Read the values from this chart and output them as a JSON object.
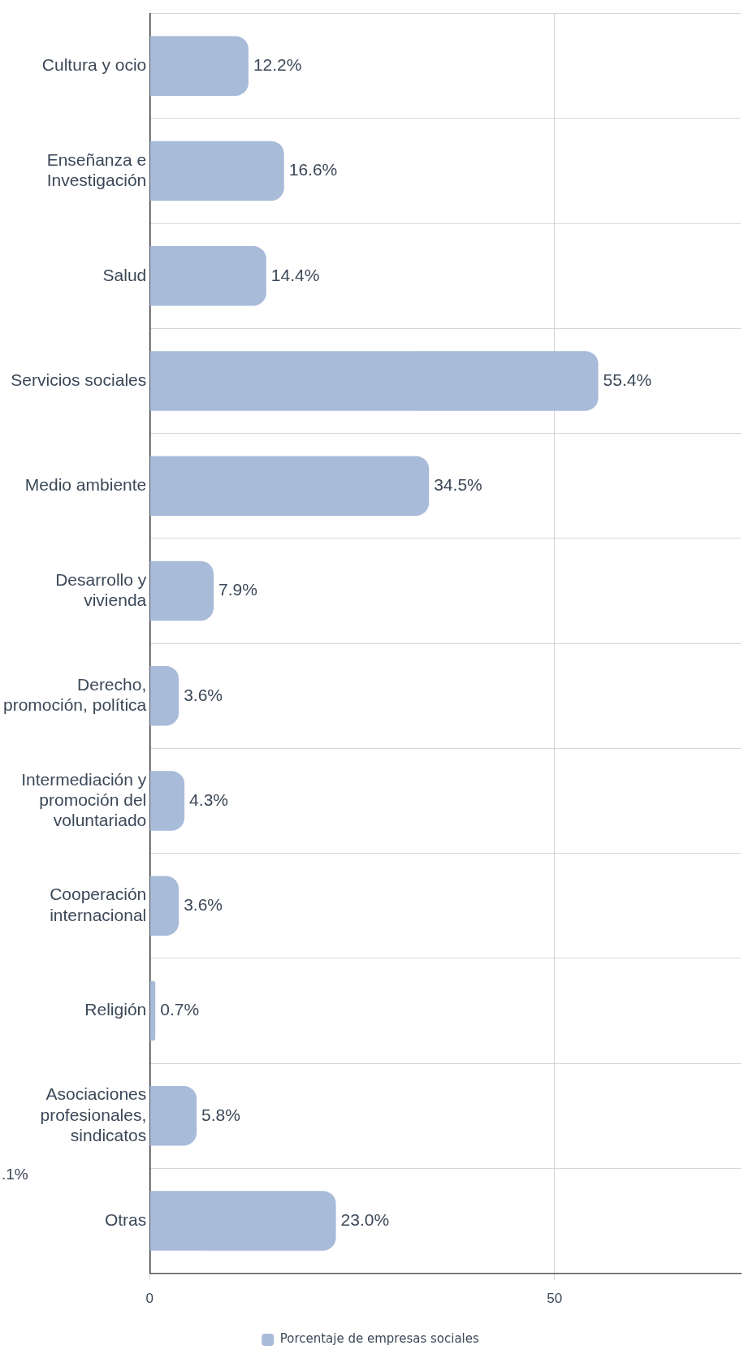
{
  "chart_data": {
    "type": "bar",
    "orientation": "horizontal",
    "categories": [
      "Cultura y ocio",
      "Enseñanza e Investigación",
      "Salud",
      "Servicios sociales",
      "Medio ambiente",
      "Desarrollo y vivienda",
      "Derecho, promoción, política",
      "Intermediación y promoción del voluntariado",
      "Cooperación internacional",
      "Religión",
      "Asociaciones profesionales, sindicatos",
      "Otras"
    ],
    "series": [
      {
        "name": "Porcentaje de empresas sociales",
        "color": "#a8bbd9",
        "values": [
          12.2,
          16.6,
          14.4,
          55.4,
          34.5,
          7.9,
          3.6,
          4.3,
          3.6,
          0.7,
          5.8,
          23.0
        ]
      }
    ],
    "value_labels": [
      "12.2%",
      "16.6%",
      "14.4%",
      "55.4%",
      "34.5%",
      "7.9%",
      "3.6%",
      "4.3%",
      "3.6%",
      "0.7%",
      "5.8%",
      "23.0%"
    ],
    "xlim": [
      0,
      73
    ],
    "xticks": [
      0,
      50
    ],
    "grid": true,
    "legend": "bottom",
    "annotations": [
      ".1%"
    ]
  }
}
